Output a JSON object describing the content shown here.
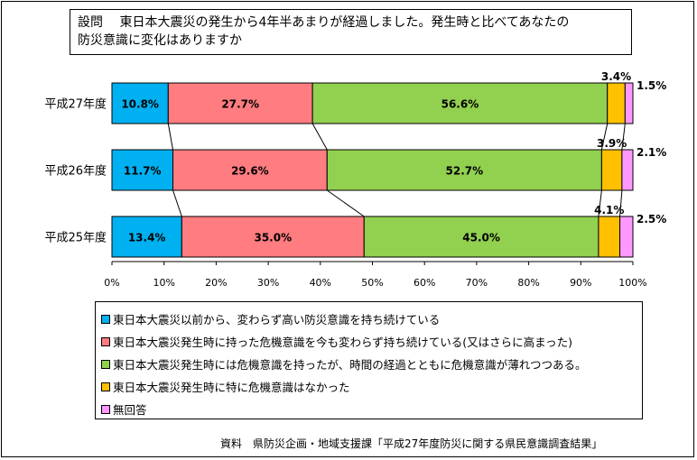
{
  "question": "設問　 東日本大震災の発生から4年半あまりが経過しました。発生時と比べてあなたの\n防災意識に変化はありますか",
  "source": "資料　県防災企画・地域支援課「平成27年度防災に関する県民意識調査結果」",
  "legend": [
    "東日本大震災以前から、変わらず高い防災意識を持ち続けている",
    "東日本大震災発生時に持った危機意識を今も変わらず持ち続けている(又はさらに高まった)",
    "東日本大震災発生時には危機意識を持ったが、時間の経過とともに危機意識が薄れつつある。",
    "東日本大震災発生時に特に危機意識はなかった",
    "無回答"
  ],
  "colors": [
    "#00b0f0",
    "#ff7c80",
    "#92d050",
    "#ffc000",
    "#ff99ff"
  ],
  "chart_data": {
    "type": "bar",
    "orientation": "horizontal-stacked-100",
    "categories": [
      "平成27年度",
      "平成26年度",
      "平成25年度"
    ],
    "series": [
      {
        "name": "東日本大震災以前から、変わらず高い防災意識を持ち続けている",
        "values": [
          10.8,
          11.7,
          13.4
        ],
        "labels": [
          "10.8%",
          "11.7%",
          "13.4%"
        ]
      },
      {
        "name": "東日本大震災発生時に持った危機意識を今も変わらず持ち続けている(又はさらに高まった)",
        "values": [
          27.7,
          29.6,
          35.0
        ],
        "labels": [
          "27.7%",
          "29.6%",
          "35.0%"
        ]
      },
      {
        "name": "東日本大震災発生時には危機意識を持ったが、時間の経過とともに危機意識が薄れつつある。",
        "values": [
          56.6,
          52.7,
          45.0
        ],
        "labels": [
          "56.6%",
          "52.7%",
          "45.0%"
        ]
      },
      {
        "name": "東日本大震災発生時に特に危機意識はなかった",
        "values": [
          3.4,
          3.9,
          4.1
        ],
        "labels": [
          "3.4%",
          "3.9%",
          "4.1%"
        ]
      },
      {
        "name": "無回答",
        "values": [
          1.5,
          2.1,
          2.5
        ],
        "labels": [
          "1.5%",
          "2.1%",
          "2.5%"
        ]
      }
    ],
    "xlim": [
      0,
      100
    ],
    "xticks": [
      "0%",
      "10%",
      "20%",
      "30%",
      "40%",
      "50%",
      "60%",
      "70%",
      "80%",
      "90%",
      "100%"
    ],
    "series_lines": true,
    "grid": false,
    "legend_position": "bottom"
  }
}
